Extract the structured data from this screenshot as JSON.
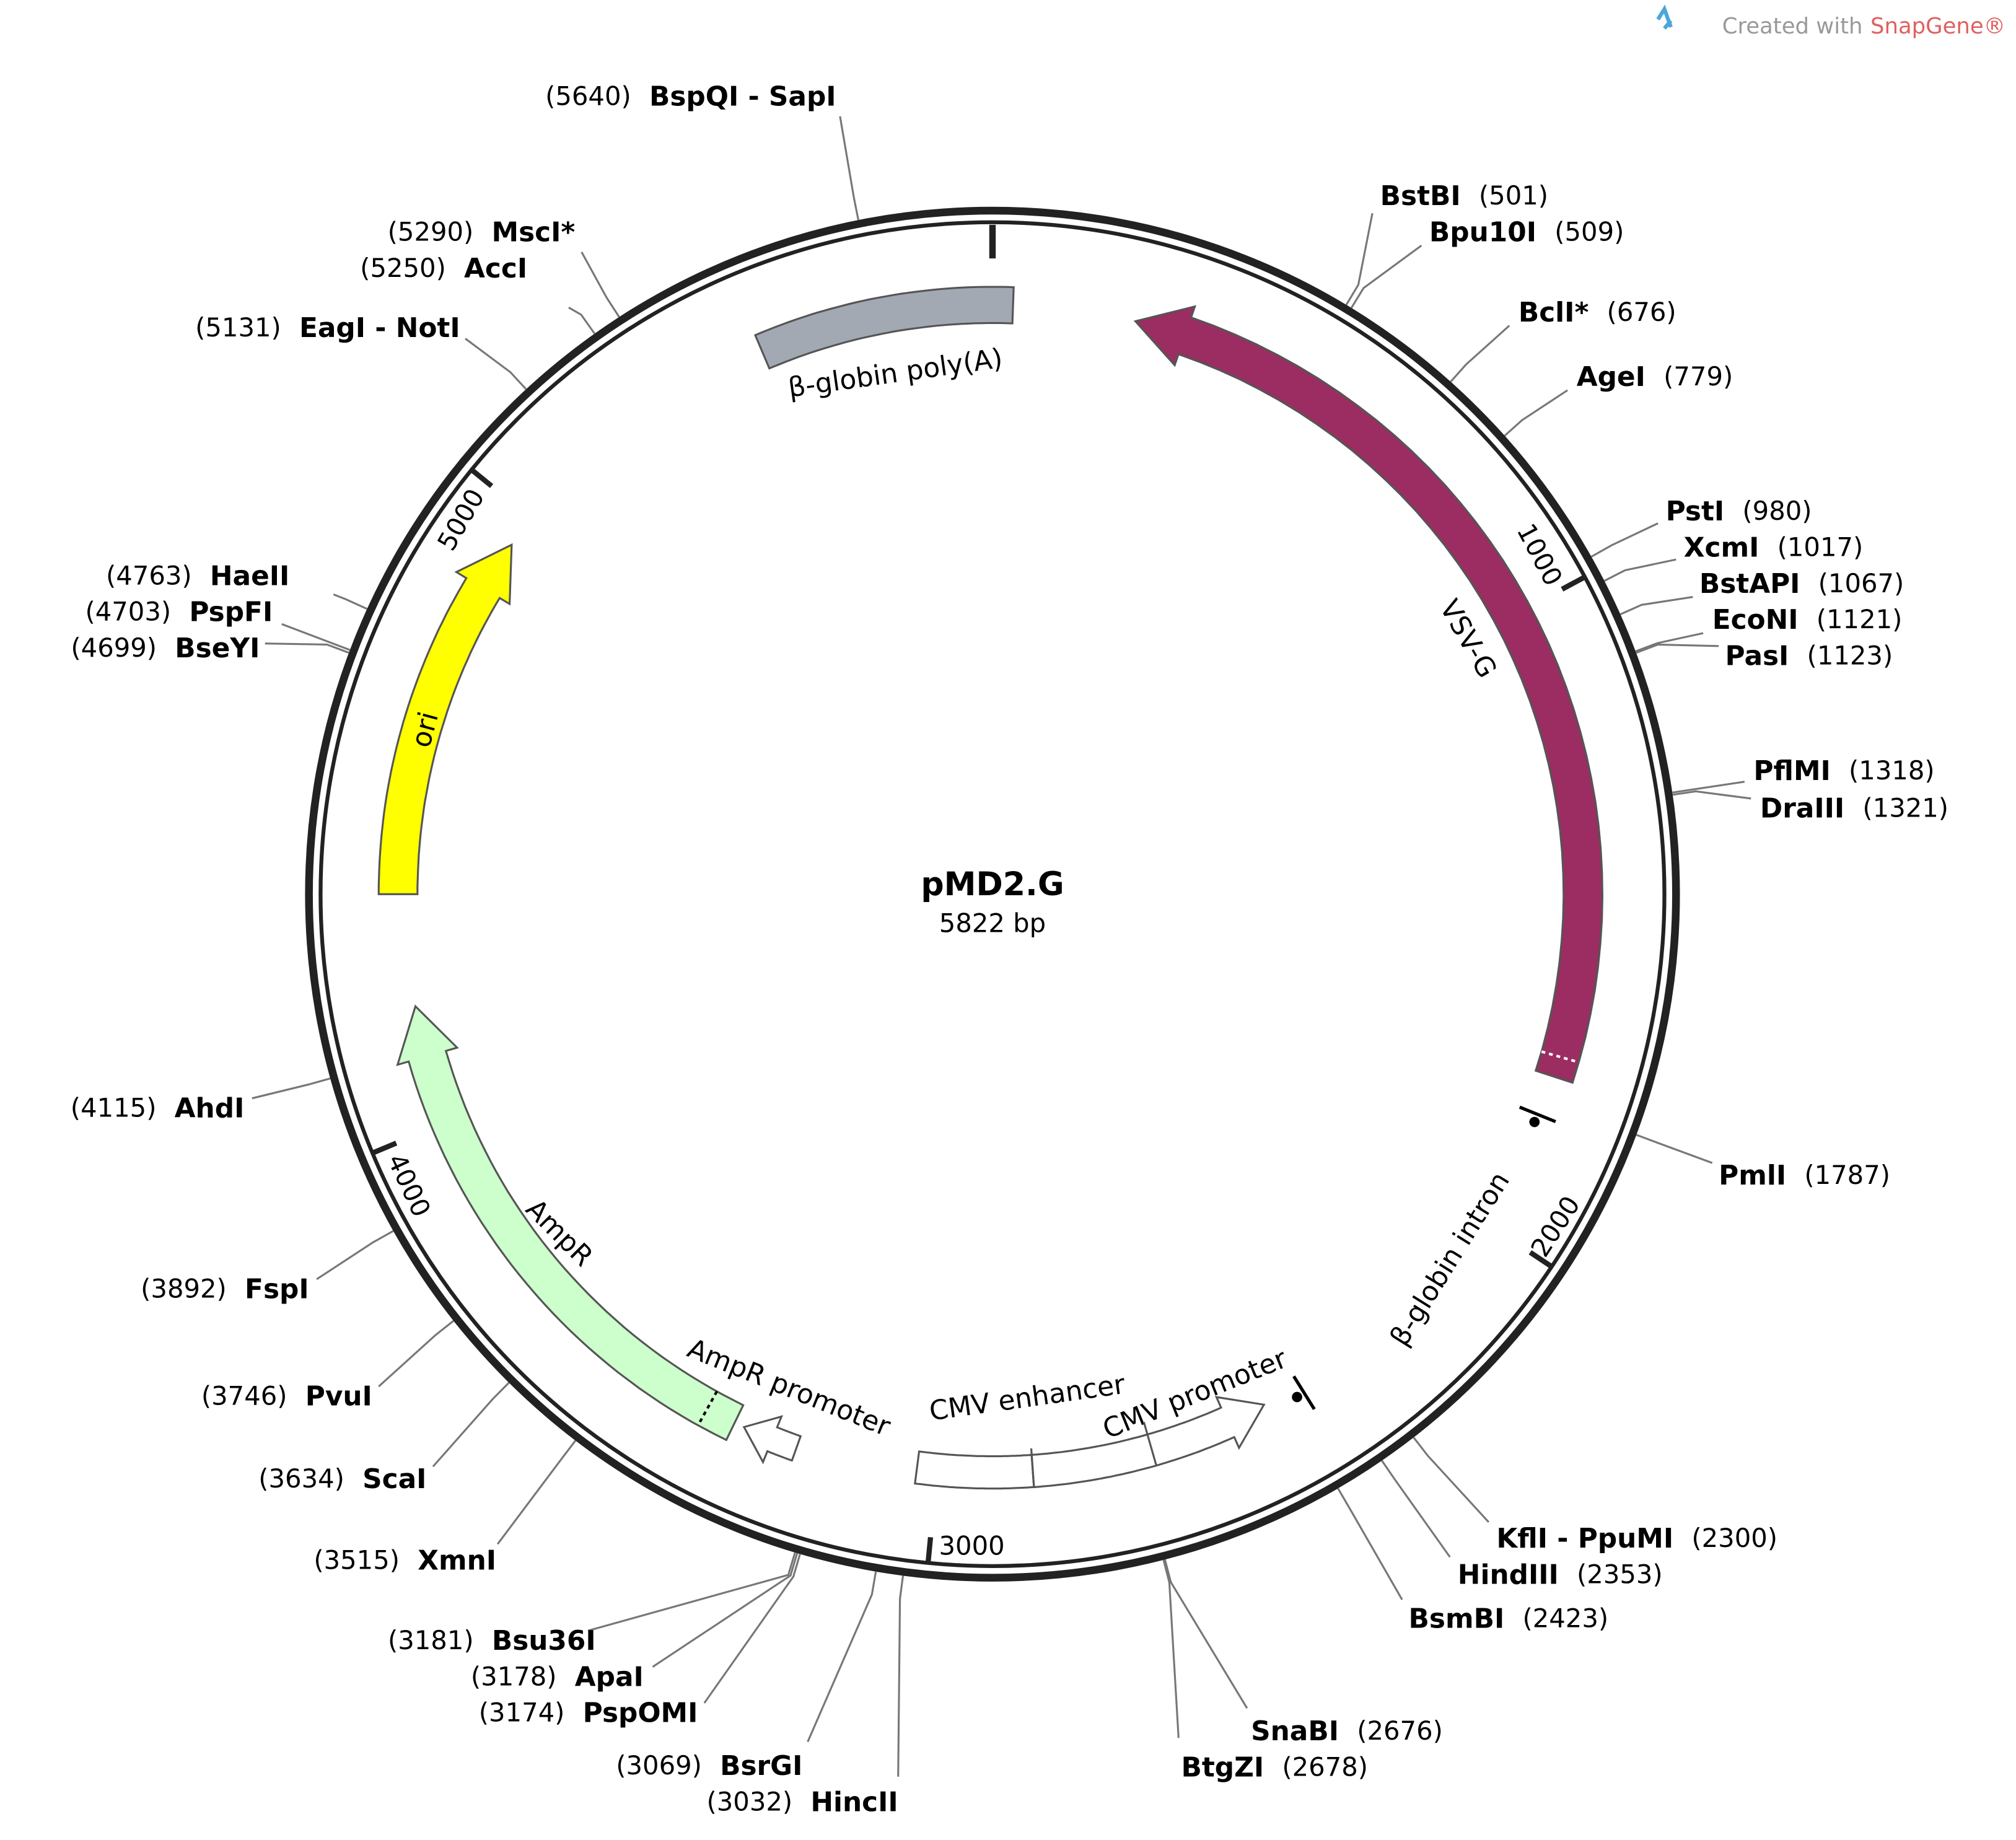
{
  "watermark": {
    "prefix": "Created with",
    "brand": "SnapGene®"
  },
  "plasmid": {
    "name": "pMD2.G",
    "length": {
      "value": 5822,
      "label": "5822 bp"
    }
  },
  "ticks": [
    1000,
    2000,
    3000,
    4000,
    5000
  ],
  "features": [
    {
      "name": "β-globin poly(A)",
      "color": "#a3a9b2"
    },
    {
      "name": "VSV-G",
      "color": "#9b2d62"
    },
    {
      "name": "ori",
      "color": "#ffff00"
    },
    {
      "name": "AmpR",
      "color": "#ccffcc"
    },
    {
      "name": "AmpR promoter",
      "color": "#ffffff"
    },
    {
      "name": "CMV enhancer",
      "color": "#ffffff"
    },
    {
      "name": "CMV promoter",
      "color": "#ffffff"
    },
    {
      "name": "β-globin intron",
      "color": "#000000"
    }
  ],
  "sites": [
    {
      "name": "BspQI - SapI",
      "position": {
        "value": 5640,
        "label": "(5640)"
      }
    },
    {
      "name": "MscI*",
      "position": {
        "value": 5290,
        "label": "(5290)"
      },
      "color": "#808080"
    },
    {
      "name": "AccI",
      "position": {
        "value": 5250,
        "label": "(5250)"
      }
    },
    {
      "name": "EagI - NotI",
      "position": {
        "value": 5131,
        "label": "(5131)"
      }
    },
    {
      "name": "HaeII",
      "position": {
        "value": 4763,
        "label": "(4763)"
      }
    },
    {
      "name": "PspFI",
      "position": {
        "value": 4703,
        "label": "(4703)"
      }
    },
    {
      "name": "BseYI",
      "position": {
        "value": 4699,
        "label": "(4699)"
      }
    },
    {
      "name": "AhdI",
      "position": {
        "value": 4115,
        "label": "(4115)"
      }
    },
    {
      "name": "FspI",
      "position": {
        "value": 3892,
        "label": "(3892)"
      }
    },
    {
      "name": "PvuI",
      "position": {
        "value": 3746,
        "label": "(3746)"
      }
    },
    {
      "name": "ScaI",
      "position": {
        "value": 3634,
        "label": "(3634)"
      }
    },
    {
      "name": "XmnI",
      "position": {
        "value": 3515,
        "label": "(3515)"
      }
    },
    {
      "name": "Bsu36I",
      "position": {
        "value": 3181,
        "label": "(3181)"
      }
    },
    {
      "name": "ApaI",
      "position": {
        "value": 3178,
        "label": "(3178)"
      }
    },
    {
      "name": "PspOMI",
      "position": {
        "value": 3174,
        "label": "(3174)"
      }
    },
    {
      "name": "BsrGI",
      "position": {
        "value": 3069,
        "label": "(3069)"
      }
    },
    {
      "name": "HincII",
      "position": {
        "value": 3032,
        "label": "(3032)"
      }
    },
    {
      "name": "BstBI",
      "position": {
        "value": 501,
        "label": "(501)"
      }
    },
    {
      "name": "Bpu10I",
      "position": {
        "value": 509,
        "label": "(509)"
      }
    },
    {
      "name": "BclI*",
      "position": {
        "value": 676,
        "label": "(676)"
      },
      "color": "#808080"
    },
    {
      "name": "AgeI",
      "position": {
        "value": 779,
        "label": "(779)"
      }
    },
    {
      "name": "PstI",
      "position": {
        "value": 980,
        "label": "(980)"
      }
    },
    {
      "name": "XcmI",
      "position": {
        "value": 1017,
        "label": "(1017)"
      }
    },
    {
      "name": "BstAPI",
      "position": {
        "value": 1067,
        "label": "(1067)"
      }
    },
    {
      "name": "EcoNI",
      "position": {
        "value": 1121,
        "label": "(1121)"
      }
    },
    {
      "name": "PasI",
      "position": {
        "value": 1123,
        "label": "(1123)"
      }
    },
    {
      "name": "PflMI",
      "position": {
        "value": 1318,
        "label": "(1318)"
      }
    },
    {
      "name": "DraIII",
      "position": {
        "value": 1321,
        "label": "(1321)"
      }
    },
    {
      "name": "PmlI",
      "position": {
        "value": 1787,
        "label": "(1787)"
      }
    },
    {
      "name": "KflI - PpuMI",
      "position": {
        "value": 2300,
        "label": "(2300)"
      }
    },
    {
      "name": "HindIII",
      "position": {
        "value": 2353,
        "label": "(2353)"
      }
    },
    {
      "name": "BsmBI",
      "position": {
        "value": 2423,
        "label": "(2423)"
      }
    },
    {
      "name": "SnaBI",
      "position": {
        "value": 2676,
        "label": "(2676)"
      }
    },
    {
      "name": "BtgZI",
      "position": {
        "value": 2678,
        "label": "(2678)"
      }
    }
  ]
}
